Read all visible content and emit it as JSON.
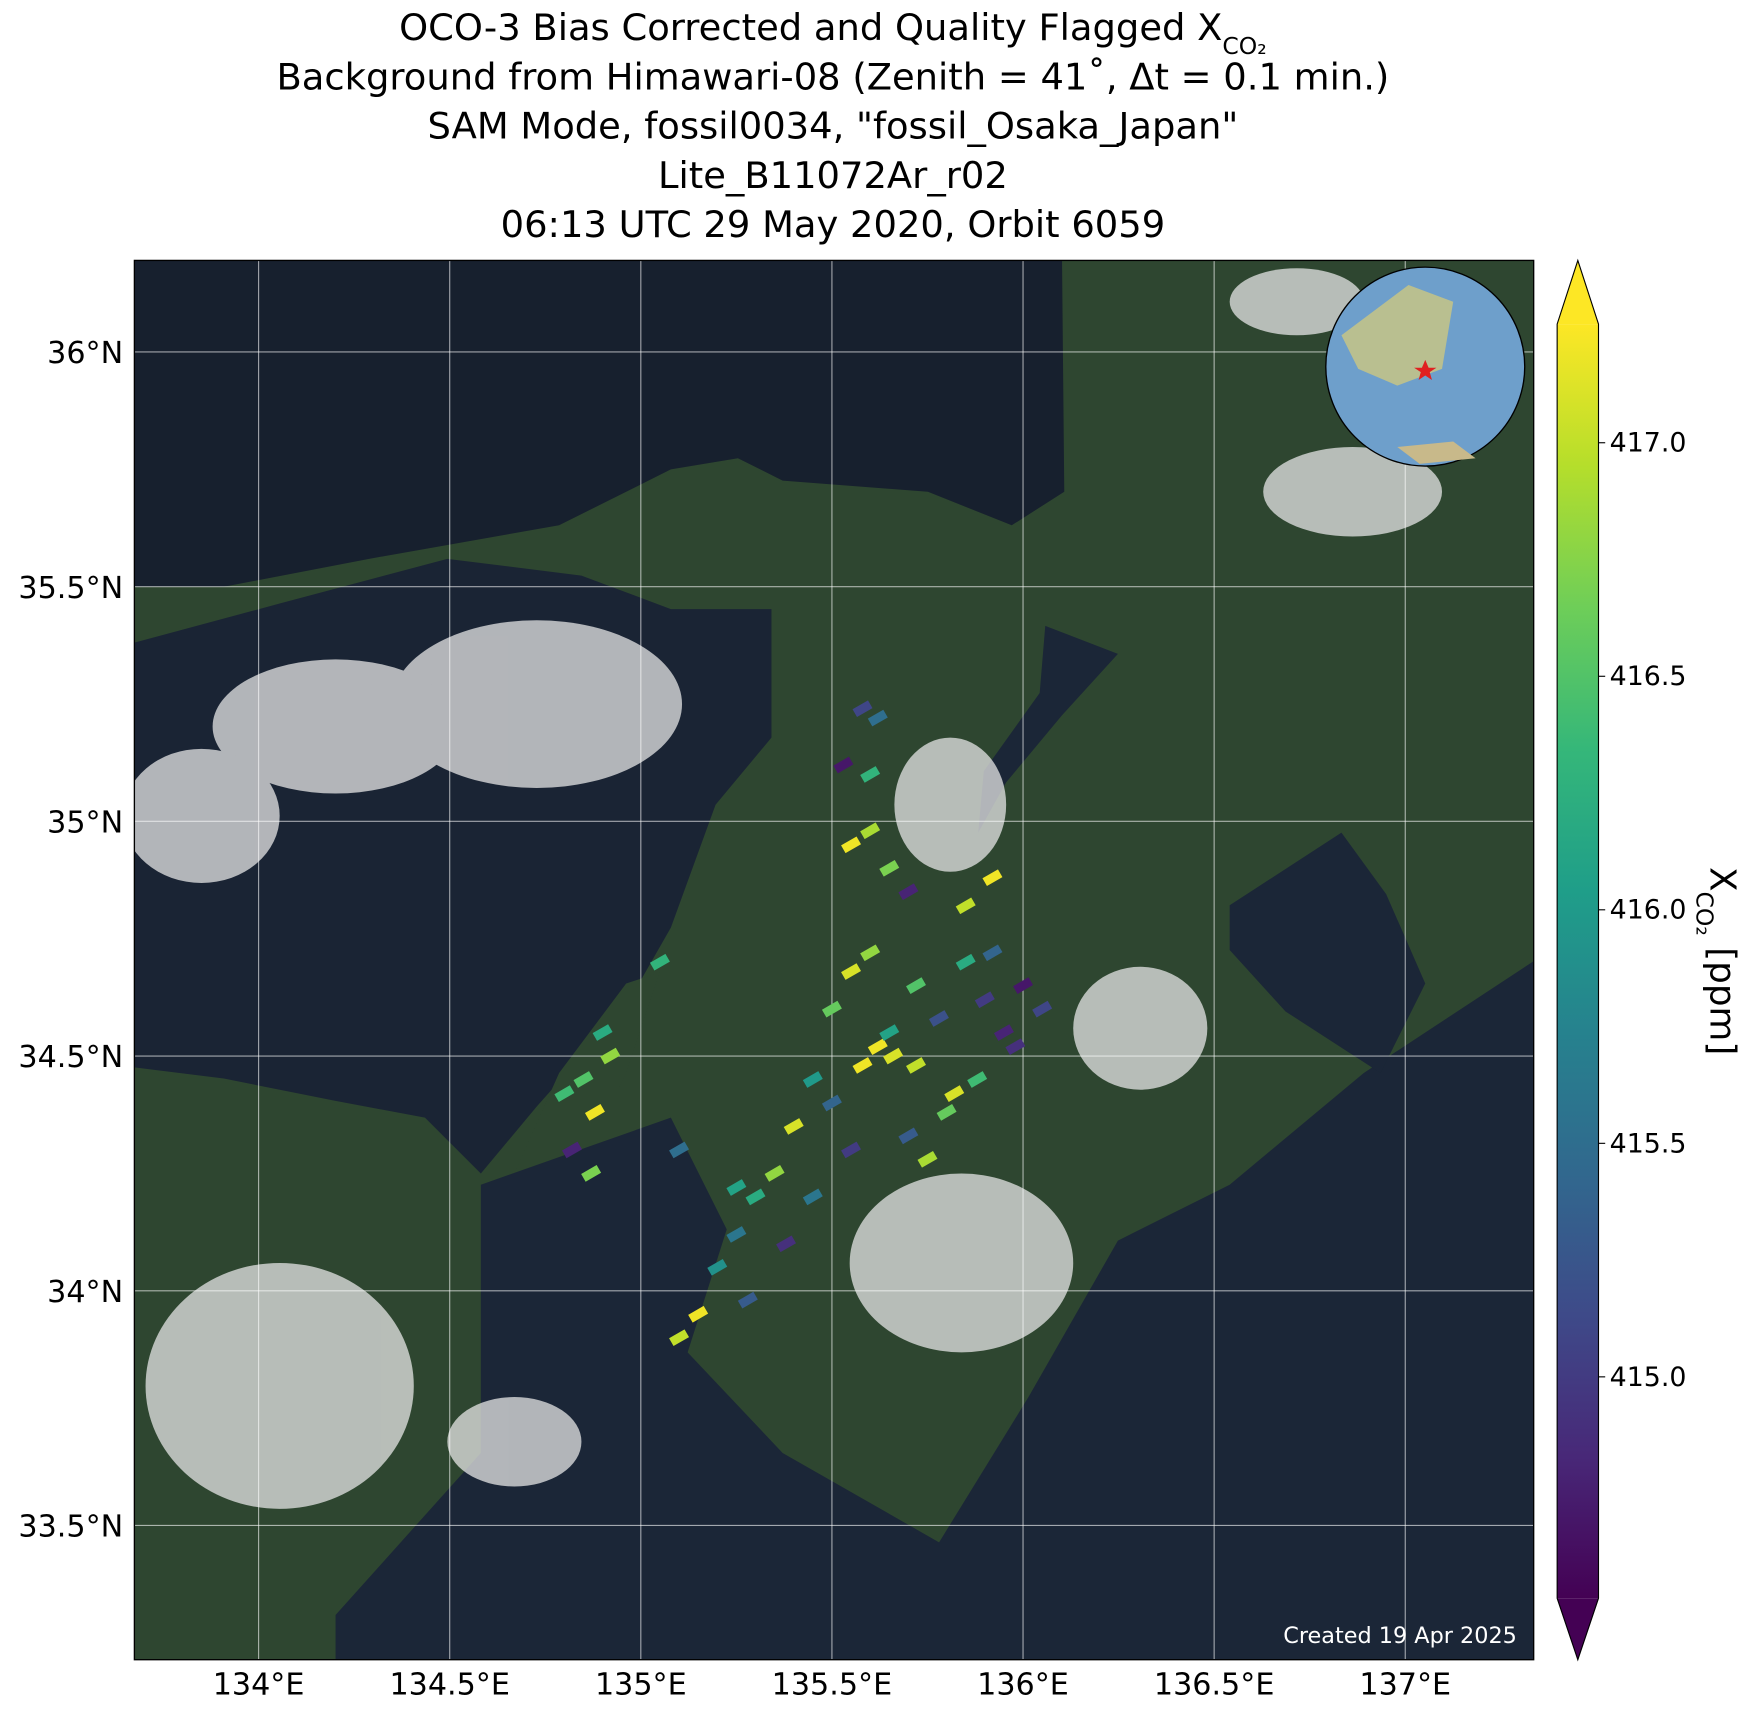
{
  "chart_data": {
    "type": "scatter",
    "title": [
      {
        "text": "OCO-3 Bias Corrected and Quality Flagged X",
        "subscript": "CO₂"
      },
      {
        "text": "Background from Himawari-08 (Zenith = 41˚, Δt =  0.1 min.)"
      },
      {
        "text": "SAM Mode, fossil0034, \"fossil_Osaka_Japan\""
      },
      {
        "text": "Lite_B11072Ar_r02"
      },
      {
        "text": "06:13 UTC 29 May 2020, Orbit 6059"
      }
    ],
    "xlim": [
      133.675,
      137.336
    ],
    "ylim": [
      33.214,
      36.195
    ],
    "xticks": [
      {
        "value": 134,
        "label": "134°E"
      },
      {
        "value": 134.5,
        "label": "134.5°E"
      },
      {
        "value": 135,
        "label": "135°E"
      },
      {
        "value": 135.5,
        "label": "135.5°E"
      },
      {
        "value": 136,
        "label": "136°E"
      },
      {
        "value": 136.5,
        "label": "136.5°E"
      },
      {
        "value": 137,
        "label": "137°E"
      }
    ],
    "yticks": [
      {
        "value": 33.5,
        "label": "33.5°N"
      },
      {
        "value": 34,
        "label": "34°N"
      },
      {
        "value": 34.5,
        "label": "34.5°N"
      },
      {
        "value": 35,
        "label": "35°N"
      },
      {
        "value": 35.5,
        "label": "35.5°N"
      },
      {
        "value": 36,
        "label": "36°N"
      }
    ],
    "grid": true,
    "colormap": "viridis",
    "clim": [
      414.526,
      417.254
    ],
    "cticks": [
      {
        "value": 415,
        "label": "415.0"
      },
      {
        "value": 415.5,
        "label": "415.5"
      },
      {
        "value": 416,
        "label": "416.0"
      },
      {
        "value": 416.5,
        "label": "416.5"
      },
      {
        "value": 417,
        "label": "417.0"
      }
    ],
    "colorbar_label": {
      "symbol": "X",
      "subscript": "CO₂",
      "unit": " [ppm]"
    },
    "annotation": "Created 19 Apr 2025",
    "x": [
      135.62,
      135.66,
      135.72,
      135.5,
      135.55,
      135.6,
      135.78,
      135.82,
      135.9,
      135.95,
      136.0,
      136.05,
      135.85,
      135.92,
      135.98,
      135.45,
      135.5,
      135.55,
      135.7,
      135.75,
      135.8,
      135.88,
      135.65,
      135.72,
      135.58,
      135.4,
      135.35,
      135.3,
      135.25,
      135.2,
      135.15,
      135.28,
      135.38,
      135.45,
      135.1,
      135.05,
      134.85,
      134.88,
      134.9,
      134.82,
      134.87,
      134.92,
      134.8,
      135.1,
      135.25,
      135.55,
      135.6,
      135.65,
      135.58,
      135.62,
      135.7,
      135.85,
      135.92,
      135.53,
      135.6
    ],
    "y": [
      34.52,
      34.5,
      34.48,
      34.6,
      34.68,
      34.72,
      34.58,
      34.42,
      34.62,
      34.55,
      34.65,
      34.6,
      34.7,
      34.72,
      34.52,
      34.45,
      34.4,
      34.3,
      34.33,
      34.28,
      34.38,
      34.45,
      34.55,
      34.65,
      34.48,
      34.35,
      34.25,
      34.2,
      34.12,
      34.05,
      33.95,
      33.98,
      34.1,
      34.2,
      33.9,
      34.7,
      34.45,
      34.38,
      34.55,
      34.3,
      34.25,
      34.5,
      34.42,
      34.3,
      34.22,
      34.95,
      34.98,
      34.9,
      35.24,
      35.22,
      34.85,
      34.82,
      34.88,
      35.12,
      35.1
    ],
    "values": [
      417.2,
      417.1,
      417.0,
      416.6,
      417.1,
      416.8,
      415.2,
      417.1,
      415.0,
      414.8,
      414.7,
      415.1,
      416.2,
      415.4,
      414.9,
      416.0,
      415.4,
      415.0,
      415.3,
      416.9,
      416.6,
      416.4,
      416.1,
      416.5,
      417.2,
      417.1,
      416.8,
      416.2,
      415.6,
      415.9,
      417.2,
      415.3,
      414.9,
      415.6,
      417.0,
      416.3,
      416.5,
      417.2,
      416.2,
      414.8,
      416.7,
      416.8,
      416.4,
      415.5,
      416.1,
      417.2,
      416.9,
      416.7,
      415.1,
      415.5,
      414.8,
      417.0,
      417.2,
      414.7,
      416.3
    ]
  }
}
